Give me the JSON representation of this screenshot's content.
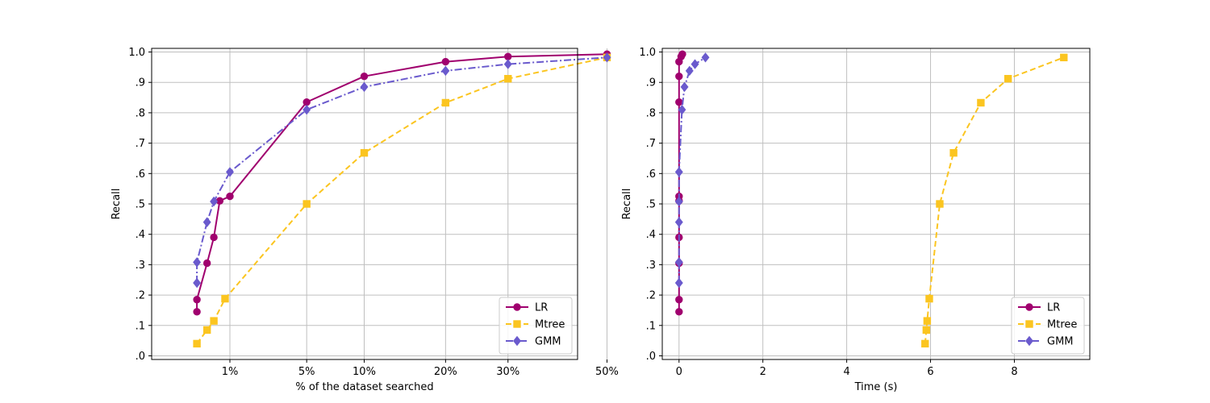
{
  "chart_data": [
    {
      "type": "line",
      "xlabel": "% of the dataset searched",
      "ylabel": "Recall",
      "xscale": "sqrt",
      "xlim": [
        0,
        50
      ],
      "ylim": [
        0,
        1
      ],
      "xticks": [
        1,
        5,
        10,
        20,
        30,
        50
      ],
      "xtick_labels": [
        "1%",
        "5%",
        "10%",
        "20%",
        "30%",
        "50%"
      ],
      "yticks": [
        0,
        0.1,
        0.2,
        0.3,
        0.4,
        0.5,
        0.6,
        0.7,
        0.8,
        0.9,
        1.0
      ],
      "ytick_labels": [
        ".0",
        ".1",
        ".2",
        ".3",
        ".4",
        ".5",
        ".6",
        ".7",
        ".8",
        ".9",
        "1.0"
      ],
      "grid": true,
      "legend_position": "bottom-right",
      "series": [
        {
          "name": "LR",
          "color": "#a0006e",
          "linestyle": "solid",
          "marker": "circle",
          "x": [
            0.22,
            0.22,
            0.4,
            0.55,
            0.7,
            1.0,
            5,
            10,
            20,
            30,
            50
          ],
          "y": [
            0.145,
            0.185,
            0.305,
            0.39,
            0.51,
            0.525,
            0.835,
            0.92,
            0.968,
            0.985,
            0.993
          ]
        },
        {
          "name": "Mtree",
          "color": "#fbc520",
          "linestyle": "dashed",
          "marker": "square",
          "x": [
            0.22,
            0.4,
            0.55,
            0.85,
            5,
            10,
            20,
            30,
            50
          ],
          "y": [
            0.04,
            0.085,
            0.115,
            0.188,
            0.5,
            0.668,
            0.833,
            0.912,
            0.982
          ]
        },
        {
          "name": "GMM",
          "color": "#6a5acd",
          "linestyle": "dashdot",
          "marker": "diamond",
          "x": [
            0.22,
            0.22,
            0.4,
            0.55,
            1.0,
            5,
            10,
            20,
            30,
            50
          ],
          "y": [
            0.24,
            0.308,
            0.44,
            0.508,
            0.605,
            0.81,
            0.885,
            0.938,
            0.96,
            0.982
          ]
        }
      ]
    },
    {
      "type": "line",
      "xlabel": "Time (s)",
      "ylabel": "Recall",
      "xlim": [
        -0.4,
        9.8
      ],
      "ylim": [
        0,
        1
      ],
      "xticks": [
        0,
        2,
        4,
        6,
        8
      ],
      "xtick_labels": [
        "0",
        "2",
        "4",
        "6",
        "8"
      ],
      "yticks": [
        0,
        0.1,
        0.2,
        0.3,
        0.4,
        0.5,
        0.6,
        0.7,
        0.8,
        0.9,
        1.0
      ],
      "ytick_labels": [
        ".0",
        ".1",
        ".2",
        ".3",
        ".4",
        ".5",
        ".6",
        ".7",
        ".8",
        ".9",
        "1.0"
      ],
      "grid": true,
      "legend_position": "bottom-right",
      "series": [
        {
          "name": "LR",
          "color": "#a0006e",
          "linestyle": "solid",
          "marker": "circle",
          "x": [
            0.0,
            0.0,
            0.0,
            0.0,
            0.0,
            0.0,
            0.0,
            0.0,
            0.0,
            0.05,
            0.08
          ],
          "y": [
            0.145,
            0.185,
            0.305,
            0.39,
            0.51,
            0.525,
            0.835,
            0.92,
            0.968,
            0.985,
            0.993
          ]
        },
        {
          "name": "Mtree",
          "color": "#fbc520",
          "linestyle": "dashed",
          "marker": "square",
          "x": [
            5.87,
            5.9,
            5.92,
            5.97,
            6.22,
            6.55,
            7.2,
            7.85,
            9.18
          ],
          "y": [
            0.04,
            0.085,
            0.115,
            0.188,
            0.5,
            0.668,
            0.833,
            0.912,
            0.982
          ]
        },
        {
          "name": "GMM",
          "color": "#6a5acd",
          "linestyle": "dashdot",
          "marker": "diamond",
          "x": [
            0.0,
            0.0,
            0.0,
            0.0,
            0.0,
            0.07,
            0.13,
            0.25,
            0.38,
            0.63
          ],
          "y": [
            0.24,
            0.308,
            0.44,
            0.508,
            0.605,
            0.81,
            0.885,
            0.938,
            0.96,
            0.982
          ]
        }
      ]
    }
  ]
}
